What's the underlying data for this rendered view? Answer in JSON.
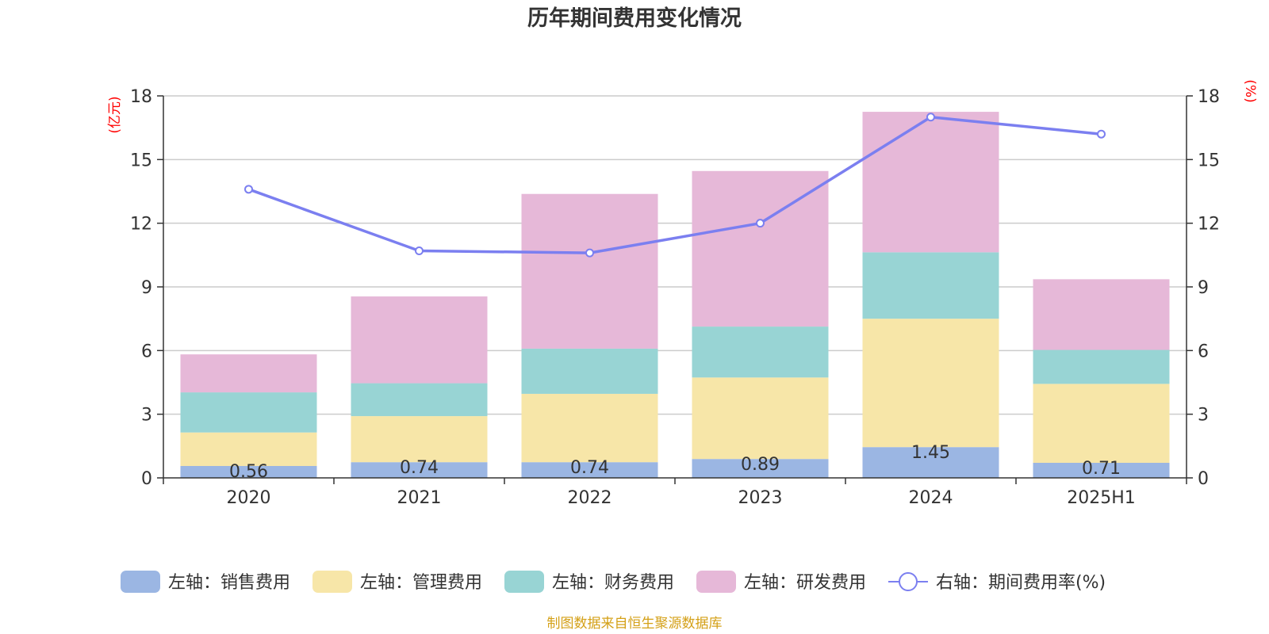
{
  "chart_data": {
    "type": "bar",
    "stacked": true,
    "title": "历年期间费用变化情况",
    "categories": [
      "2020",
      "2021",
      "2022",
      "2023",
      "2024",
      "2025H1"
    ],
    "left_axis": {
      "unit": "(亿元)",
      "ylim": [
        0,
        18
      ],
      "ticks": [
        "0",
        "3",
        "6",
        "9",
        "12",
        "15",
        "18"
      ]
    },
    "right_axis": {
      "unit": "(%)",
      "ylim": [
        0,
        18
      ],
      "ticks": [
        "0",
        "3",
        "6",
        "9",
        "12",
        "15",
        "18"
      ]
    },
    "series": [
      {
        "name": "左轴：销售费用",
        "type": "bar",
        "axis": "left",
        "color": "#9bb6e3",
        "values": [
          0.56,
          0.74,
          0.74,
          0.89,
          1.45,
          0.71
        ],
        "labels": [
          "0.56",
          "0.74",
          "0.74",
          "0.89",
          "1.45",
          "0.71"
        ]
      },
      {
        "name": "左轴：管理费用",
        "type": "bar",
        "axis": "left",
        "color": "#f7e6a8",
        "values": [
          1.58,
          2.17,
          3.22,
          3.84,
          6.05,
          3.72
        ]
      },
      {
        "name": "左轴：财务费用",
        "type": "bar",
        "axis": "left",
        "color": "#98d4d4",
        "values": [
          1.89,
          1.55,
          2.13,
          2.4,
          3.13,
          1.6
        ]
      },
      {
        "name": "左轴：研发费用",
        "type": "bar",
        "axis": "left",
        "color": "#e6b8d8",
        "values": [
          1.79,
          4.09,
          7.29,
          7.33,
          6.62,
          3.33
        ]
      },
      {
        "name": "右轴：期间费用率(%)",
        "type": "line",
        "axis": "right",
        "color": "#7b7ff0",
        "values": [
          13.6,
          10.7,
          10.6,
          12.0,
          17.0,
          16.2
        ]
      }
    ],
    "legend_position": "bottom",
    "grid": true
  },
  "source_note": "制图数据来自恒生聚源数据库"
}
